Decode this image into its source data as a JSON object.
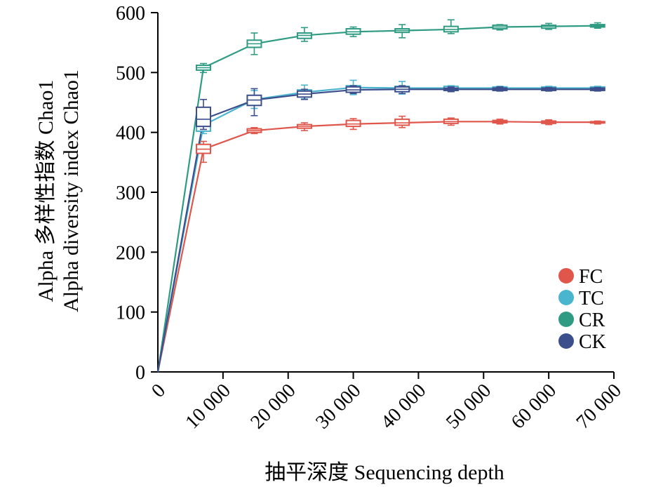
{
  "chart_data": {
    "type": "line",
    "ylabel_line1": "Alpha 多样性指数 Chao1",
    "ylabel_line2": "Alpha diversity index Chao1",
    "xlabel": "抽平深度 Sequencing depth",
    "xlim": [
      0,
      70000
    ],
    "ylim": [
      0,
      600
    ],
    "grid": false,
    "legend_position": "right",
    "x_ticks": [
      0,
      10000,
      20000,
      30000,
      40000,
      50000,
      60000,
      70000
    ],
    "x_tick_labels": [
      "0",
      "10 000",
      "20 000",
      "30 000",
      "40 000",
      "50 000",
      "60 000",
      "70 000"
    ],
    "y_ticks": [
      0,
      100,
      200,
      300,
      400,
      500,
      600
    ],
    "y_tick_labels": [
      "0",
      "100",
      "200",
      "300",
      "400",
      "500",
      "600"
    ],
    "x": [
      0,
      7000,
      14800,
      22500,
      30000,
      37500,
      45000,
      52500,
      60000,
      67500
    ],
    "series": [
      {
        "name": "FC",
        "color": "#E0564B",
        "median": [
          0,
          372,
          403,
          410,
          414,
          416,
          418,
          418,
          417,
          417
        ],
        "q1": [
          0,
          365,
          400,
          407,
          410,
          412,
          415,
          416,
          415,
          416
        ],
        "q3": [
          0,
          380,
          406,
          413,
          420,
          422,
          422,
          420,
          419,
          418
        ],
        "min": [
          0,
          350,
          398,
          403,
          405,
          408,
          412,
          414,
          413,
          414
        ],
        "max": [
          0,
          385,
          408,
          416,
          423,
          427,
          424,
          422,
          421,
          419
        ]
      },
      {
        "name": "TC",
        "color": "#4BB4CF",
        "median": [
          0,
          412,
          455,
          467,
          475,
          474,
          474,
          474,
          474,
          474
        ],
        "q1": [
          0,
          402,
          448,
          461,
          468,
          468,
          470,
          471,
          471,
          472
        ],
        "q3": [
          0,
          425,
          460,
          471,
          478,
          477,
          477,
          476,
          476,
          476
        ],
        "min": [
          0,
          398,
          440,
          456,
          463,
          464,
          468,
          469,
          469,
          470
        ],
        "max": [
          0,
          440,
          470,
          479,
          487,
          485,
          478,
          477,
          477,
          477
        ]
      },
      {
        "name": "CR",
        "color": "#2E9B82",
        "median": [
          0,
          508,
          548,
          562,
          568,
          570,
          572,
          576,
          577,
          578
        ],
        "q1": [
          0,
          504,
          542,
          557,
          564,
          567,
          568,
          573,
          574,
          576
        ],
        "q3": [
          0,
          512,
          554,
          566,
          573,
          573,
          577,
          579,
          579,
          580
        ],
        "min": [
          0,
          500,
          530,
          552,
          560,
          558,
          565,
          571,
          572,
          574
        ],
        "max": [
          0,
          515,
          566,
          575,
          576,
          580,
          588,
          580,
          582,
          583
        ]
      },
      {
        "name": "CK",
        "color": "#3C4F8C",
        "median": [
          0,
          422,
          454,
          464,
          471,
          472,
          472,
          472,
          472,
          472
        ],
        "q1": [
          0,
          410,
          445,
          459,
          467,
          468,
          470,
          470,
          470,
          470
        ],
        "q3": [
          0,
          442,
          462,
          469,
          476,
          476,
          474,
          474,
          474,
          474
        ],
        "min": [
          0,
          405,
          428,
          455,
          465,
          465,
          468,
          469,
          469,
          469
        ],
        "max": [
          0,
          455,
          473,
          472,
          478,
          478,
          476,
          476,
          475,
          475
        ]
      }
    ]
  }
}
